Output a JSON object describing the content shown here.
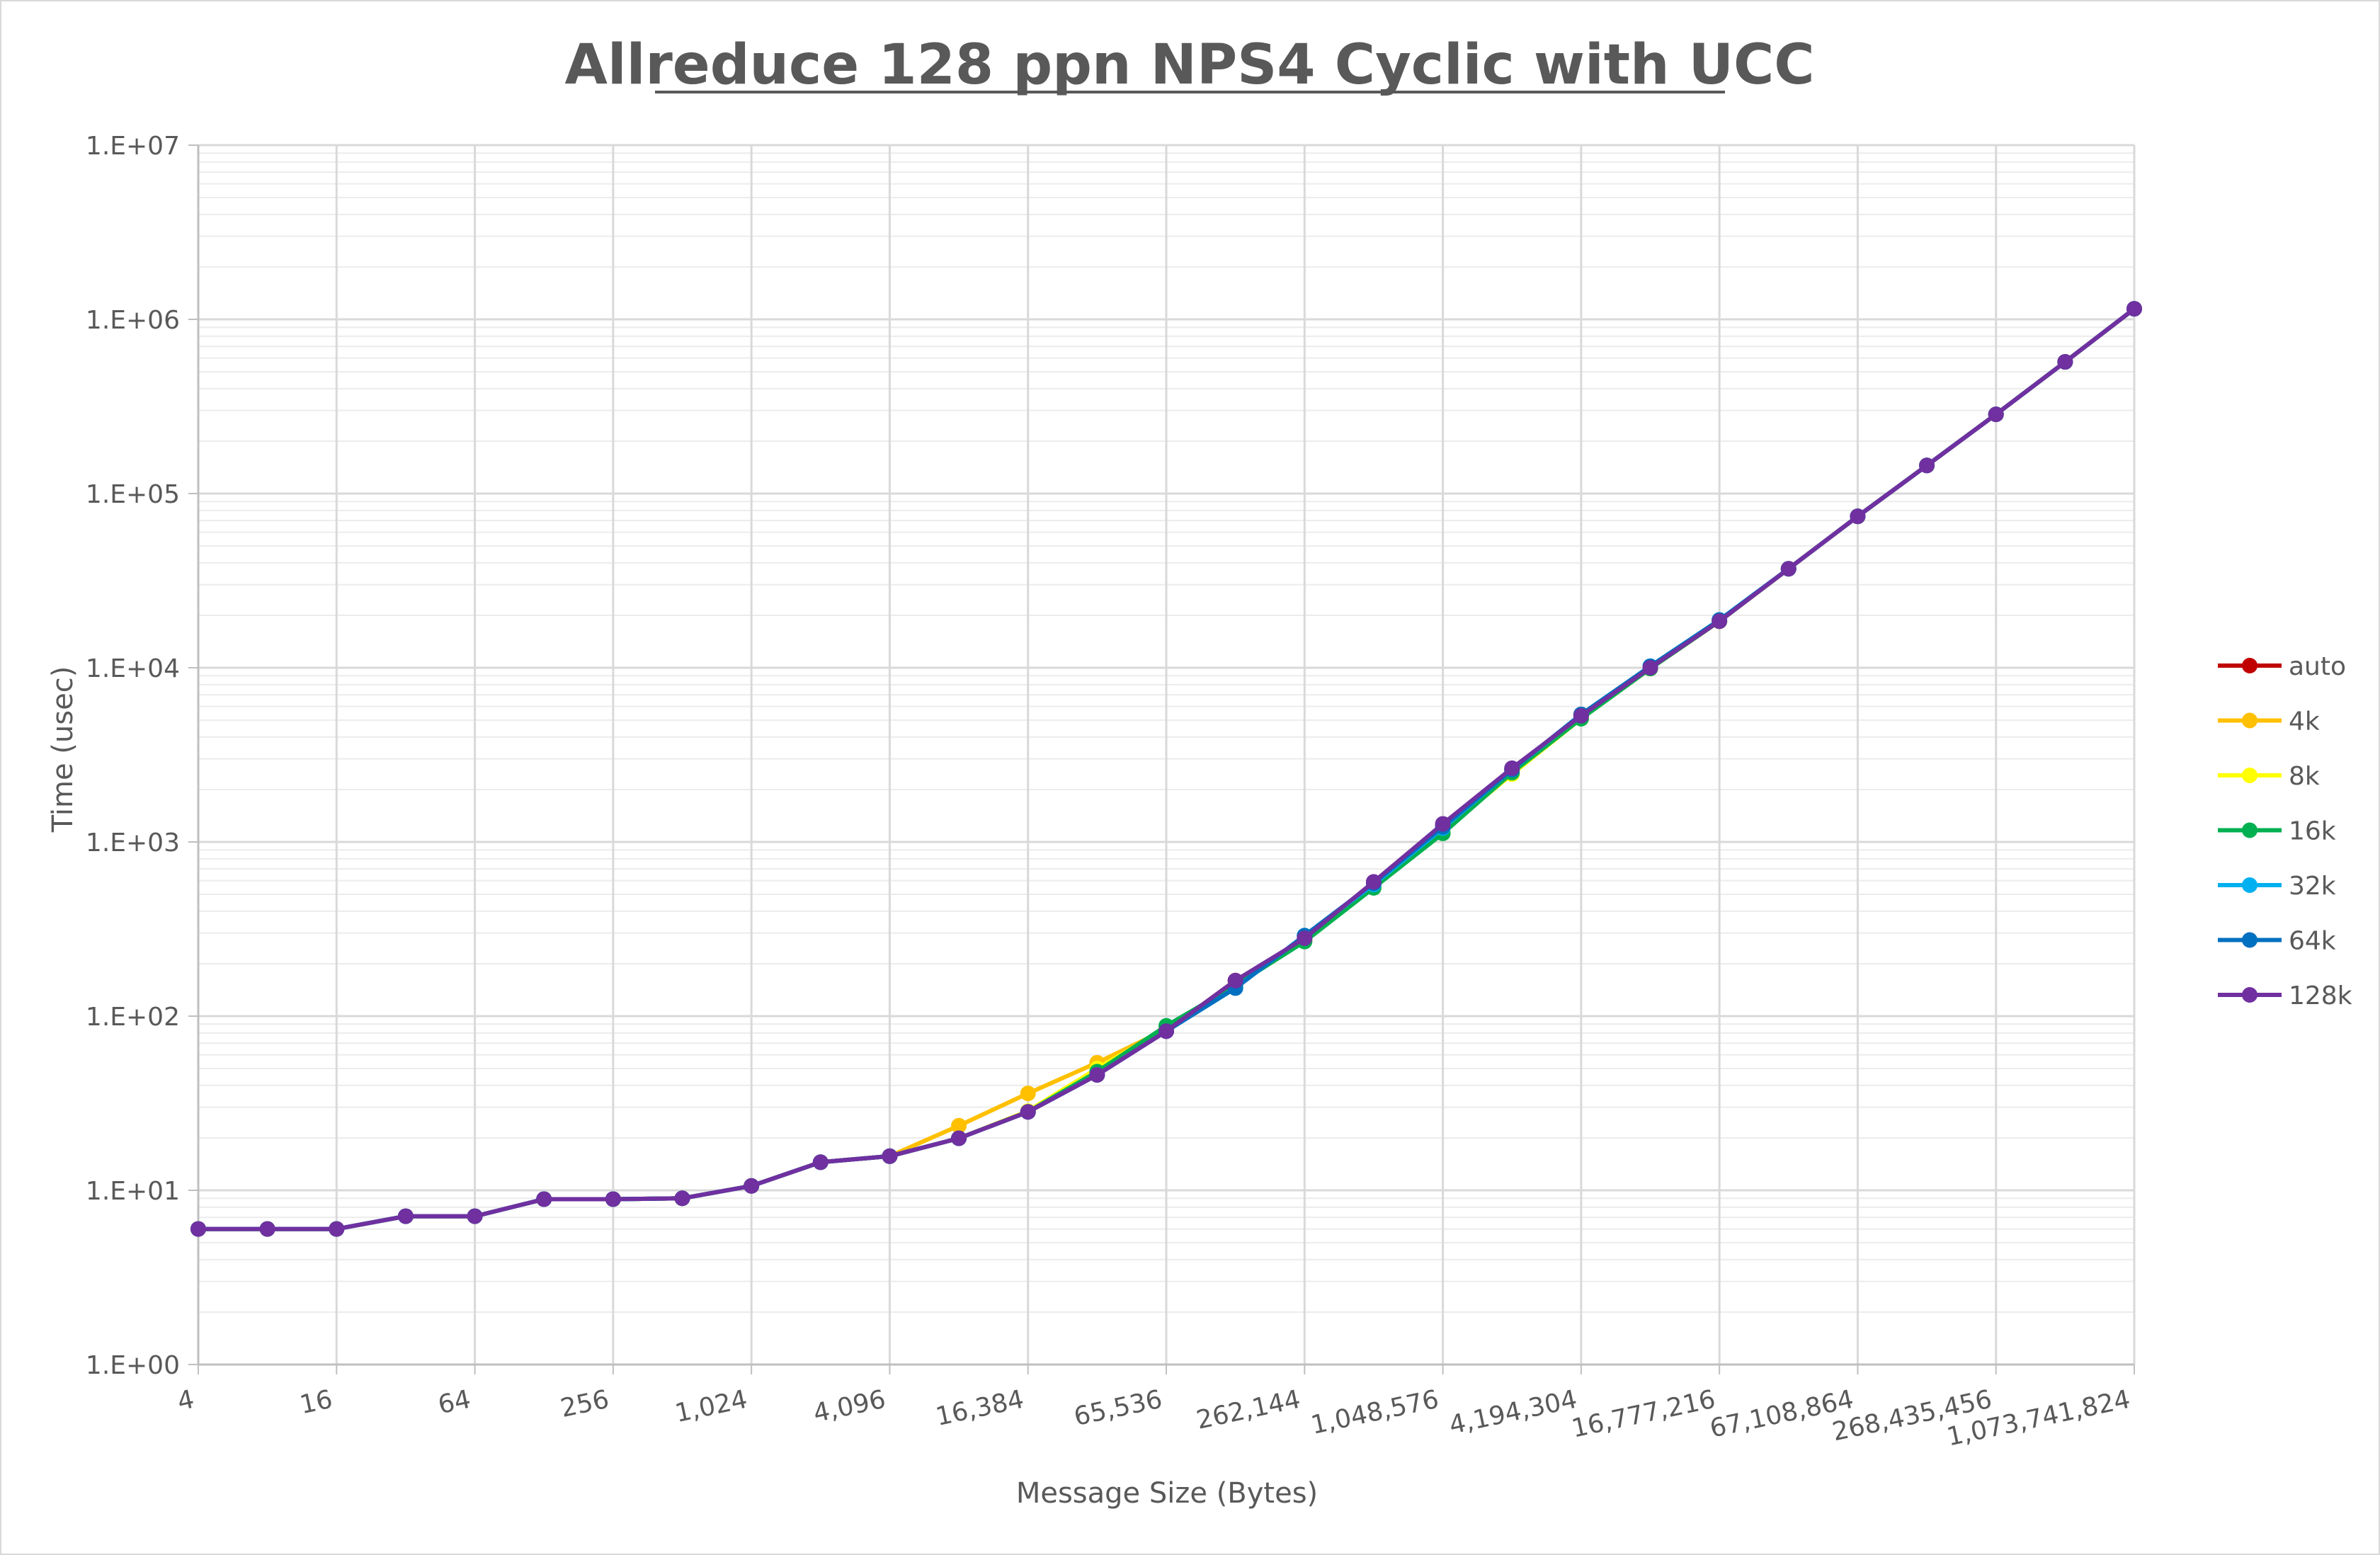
{
  "chart_data": {
    "type": "line",
    "title": "Allreduce 128 ppn NPS4 Cyclic with UCC",
    "xlabel": "Message Size (Bytes)",
    "ylabel": "Time (usec)",
    "y_scale": "log",
    "ylim": [
      1,
      10000000
    ],
    "y_ticks": [
      "1.E+00",
      "1.E+01",
      "1.E+02",
      "1.E+03",
      "1.E+04",
      "1.E+05",
      "1.E+06",
      "1.E+07"
    ],
    "x_scale": "log2",
    "x": [
      4,
      8,
      16,
      32,
      64,
      128,
      256,
      512,
      1024,
      2048,
      4096,
      8192,
      16384,
      32768,
      65536,
      131072,
      262144,
      524288,
      1048576,
      2097152,
      4194304,
      8388608,
      16777216,
      33554432,
      67108864,
      134217728,
      268435456,
      536870912,
      1073741824
    ],
    "x_tick_labels": [
      "4",
      "16",
      "64",
      "256",
      "1,024",
      "4,096",
      "16,384",
      "65,536",
      "262,144",
      "1,048,576",
      "4,194,304",
      "16,777,216",
      "67,108,864",
      "268,435,456",
      "1,073,741,824"
    ],
    "grid": true,
    "legend_position": "right",
    "series": [
      {
        "name": "auto",
        "color": "#C00000",
        "values": [
          6.0,
          6.0,
          6.0,
          7.1,
          7.1,
          8.9,
          8.9,
          9.0,
          10.6,
          14.5,
          15.7,
          19.9,
          28.2,
          46.0,
          82.0,
          160,
          275,
          580,
          1240,
          2600,
          5300,
          10000,
          18500,
          37000,
          74000,
          145000,
          285000,
          570000,
          1150000
        ]
      },
      {
        "name": "4k",
        "color": "#FFC000",
        "values": [
          6.0,
          6.0,
          6.0,
          7.1,
          7.1,
          8.9,
          8.9,
          9.0,
          10.6,
          14.5,
          15.7,
          23.5,
          36.0,
          54.0,
          84.0,
          152,
          272,
          560,
          1180,
          2500,
          5150,
          9900,
          18500,
          37000,
          74000,
          145000,
          285000,
          570000,
          1150000
        ]
      },
      {
        "name": "8k",
        "color": "#FFFF00",
        "values": [
          6.0,
          6.0,
          6.0,
          7.1,
          7.1,
          8.9,
          8.9,
          9.0,
          10.6,
          14.5,
          15.7,
          19.9,
          28.5,
          50.0,
          85.0,
          150,
          270,
          550,
          1150,
          2450,
          5100,
          9900,
          18500,
          37000,
          74000,
          145000,
          285000,
          570000,
          1150000
        ]
      },
      {
        "name": "16k",
        "color": "#00B050",
        "values": [
          6.0,
          6.0,
          6.0,
          7.1,
          7.1,
          8.9,
          8.9,
          9.0,
          10.6,
          14.5,
          15.7,
          19.9,
          28.2,
          48.0,
          88.0,
          150,
          268,
          545,
          1120,
          2500,
          5100,
          9900,
          18500,
          37000,
          74000,
          145000,
          285000,
          570000,
          1150000
        ]
      },
      {
        "name": "32k",
        "color": "#00B0F0",
        "values": [
          6.0,
          6.0,
          6.0,
          7.1,
          7.1,
          8.9,
          8.9,
          9.0,
          10.6,
          14.5,
          15.7,
          19.9,
          28.2,
          46.0,
          82.0,
          145,
          290,
          570,
          1200,
          2600,
          5350,
          10200,
          18800,
          37000,
          74000,
          145000,
          285000,
          570000,
          1150000
        ]
      },
      {
        "name": "64k",
        "color": "#0070C0",
        "values": [
          6.0,
          6.0,
          6.0,
          7.1,
          7.1,
          8.9,
          8.9,
          9.0,
          10.6,
          14.5,
          15.7,
          19.9,
          28.2,
          46.0,
          82.0,
          145,
          290,
          580,
          1220,
          2600,
          5400,
          10200,
          18800,
          37000,
          74000,
          145000,
          285000,
          570000,
          1150000
        ]
      },
      {
        "name": "128k",
        "color": "#7030A0",
        "values": [
          6.0,
          6.0,
          6.0,
          7.1,
          7.1,
          8.9,
          8.9,
          9.0,
          10.6,
          14.5,
          15.7,
          19.9,
          28.2,
          46.0,
          82.0,
          160,
          280,
          590,
          1270,
          2650,
          5300,
          10000,
          18500,
          37000,
          74000,
          145000,
          285000,
          570000,
          1150000
        ]
      }
    ]
  }
}
